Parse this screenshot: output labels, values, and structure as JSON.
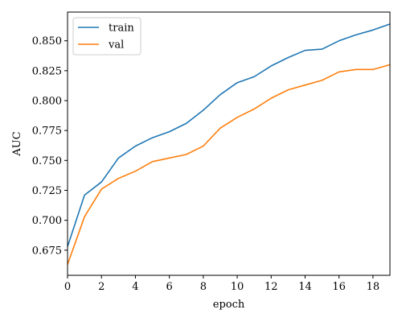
{
  "chart_data": {
    "type": "line",
    "title": "",
    "xlabel": "epoch",
    "ylabel": "AUC",
    "xlim": [
      0,
      19
    ],
    "ylim": [
      0.654,
      0.874
    ],
    "x_ticks": [
      0,
      2,
      4,
      6,
      8,
      10,
      12,
      14,
      16,
      18
    ],
    "y_ticks": [
      0.675,
      0.7,
      0.725,
      0.75,
      0.775,
      0.8,
      0.825,
      0.85
    ],
    "y_tick_labels": [
      "0.675",
      "0.700",
      "0.725",
      "0.750",
      "0.775",
      "0.800",
      "0.825",
      "0.850"
    ],
    "grid": false,
    "legend": "top-left",
    "x": [
      0,
      1,
      2,
      3,
      4,
      5,
      6,
      7,
      8,
      9,
      10,
      11,
      12,
      13,
      14,
      15,
      16,
      17,
      18,
      19
    ],
    "series": [
      {
        "name": "train",
        "color": "#1f77b4",
        "values": [
          0.678,
          0.721,
          0.732,
          0.752,
          0.762,
          0.769,
          0.774,
          0.781,
          0.792,
          0.805,
          0.815,
          0.82,
          0.829,
          0.836,
          0.842,
          0.843,
          0.85,
          0.855,
          0.859,
          0.864
        ]
      },
      {
        "name": "val",
        "color": "#ff7f0e",
        "values": [
          0.663,
          0.703,
          0.726,
          0.735,
          0.741,
          0.749,
          0.752,
          0.755,
          0.762,
          0.777,
          0.786,
          0.793,
          0.802,
          0.809,
          0.813,
          0.817,
          0.824,
          0.826,
          0.826,
          0.83
        ]
      }
    ]
  }
}
